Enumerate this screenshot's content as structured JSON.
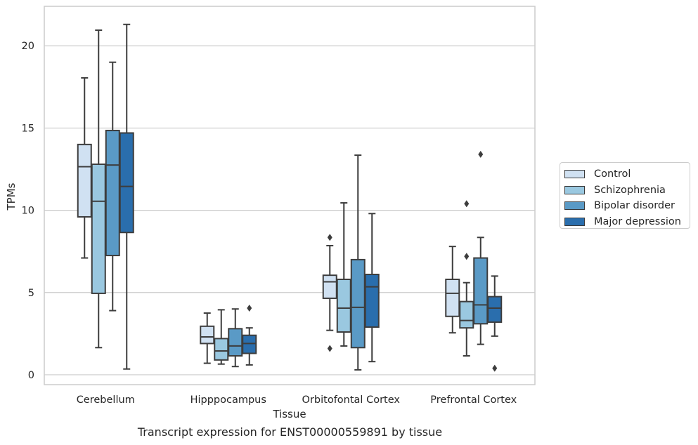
{
  "chart_data": {
    "type": "box",
    "xlabel": "Tissue",
    "ylabel": "TPMs",
    "ylim": [
      -0.6,
      22.4
    ],
    "yticks": [
      0,
      5,
      10,
      15,
      20
    ],
    "grid": "horizontal",
    "legend_position": "right",
    "categories": [
      "Cerebellum",
      "Hipppocampus",
      "Orbitofontal Cortex",
      "Prefrontal Cortex"
    ],
    "series": [
      {
        "name": "Control",
        "color": "#d0e1f2",
        "boxes": [
          {
            "whisker_low": 7.1,
            "q1": 9.6,
            "median": 12.65,
            "q3": 14.0,
            "whisker_high": 18.05,
            "outliers": []
          },
          {
            "whisker_low": 0.7,
            "q1": 1.9,
            "median": 2.3,
            "q3": 2.95,
            "whisker_high": 3.75,
            "outliers": []
          },
          {
            "whisker_low": 2.7,
            "q1": 4.65,
            "median": 5.65,
            "q3": 6.05,
            "whisker_high": 7.85,
            "outliers": [
              8.35,
              1.6
            ]
          },
          {
            "whisker_low": 2.55,
            "q1": 3.55,
            "median": 4.95,
            "q3": 5.8,
            "whisker_high": 7.8,
            "outliers": []
          }
        ]
      },
      {
        "name": "Schizophrenia",
        "color": "#9ac8e0",
        "boxes": [
          {
            "whisker_low": 1.65,
            "q1": 4.95,
            "median": 10.55,
            "q3": 12.8,
            "whisker_high": 20.95,
            "outliers": []
          },
          {
            "whisker_low": 0.65,
            "q1": 0.9,
            "median": 1.45,
            "q3": 2.2,
            "whisker_high": 3.95,
            "outliers": []
          },
          {
            "whisker_low": 1.75,
            "q1": 2.6,
            "median": 4.05,
            "q3": 5.8,
            "whisker_high": 10.45,
            "outliers": []
          },
          {
            "whisker_low": 1.15,
            "q1": 2.85,
            "median": 3.3,
            "q3": 4.45,
            "whisker_high": 5.6,
            "outliers": [
              10.4,
              7.2
            ]
          }
        ]
      },
      {
        "name": "Bipolar disorder",
        "color": "#5a9ac6",
        "boxes": [
          {
            "whisker_low": 3.9,
            "q1": 7.25,
            "median": 12.75,
            "q3": 14.85,
            "whisker_high": 19.0,
            "outliers": []
          },
          {
            "whisker_low": 0.5,
            "q1": 1.15,
            "median": 1.75,
            "q3": 2.8,
            "whisker_high": 4.0,
            "outliers": []
          },
          {
            "whisker_low": 0.3,
            "q1": 1.65,
            "median": 4.1,
            "q3": 7.0,
            "whisker_high": 13.35,
            "outliers": []
          },
          {
            "whisker_low": 1.85,
            "q1": 3.1,
            "median": 4.25,
            "q3": 7.1,
            "whisker_high": 8.35,
            "outliers": [
              13.4
            ]
          }
        ]
      },
      {
        "name": "Major depression",
        "color": "#2a6ead",
        "boxes": [
          {
            "whisker_low": 0.35,
            "q1": 8.65,
            "median": 11.45,
            "q3": 14.7,
            "whisker_high": 21.3,
            "outliers": []
          },
          {
            "whisker_low": 0.6,
            "q1": 1.3,
            "median": 1.9,
            "q3": 2.4,
            "whisker_high": 2.85,
            "outliers": [
              4.05
            ]
          },
          {
            "whisker_low": 0.8,
            "q1": 2.9,
            "median": 5.35,
            "q3": 6.1,
            "whisker_high": 9.8,
            "outliers": []
          },
          {
            "whisker_low": 2.35,
            "q1": 3.2,
            "median": 4.05,
            "q3": 4.75,
            "whisker_high": 6.0,
            "outliers": [
              0.4
            ]
          }
        ]
      }
    ]
  },
  "caption": "Transcript expression for ENST00000559891 by tissue"
}
